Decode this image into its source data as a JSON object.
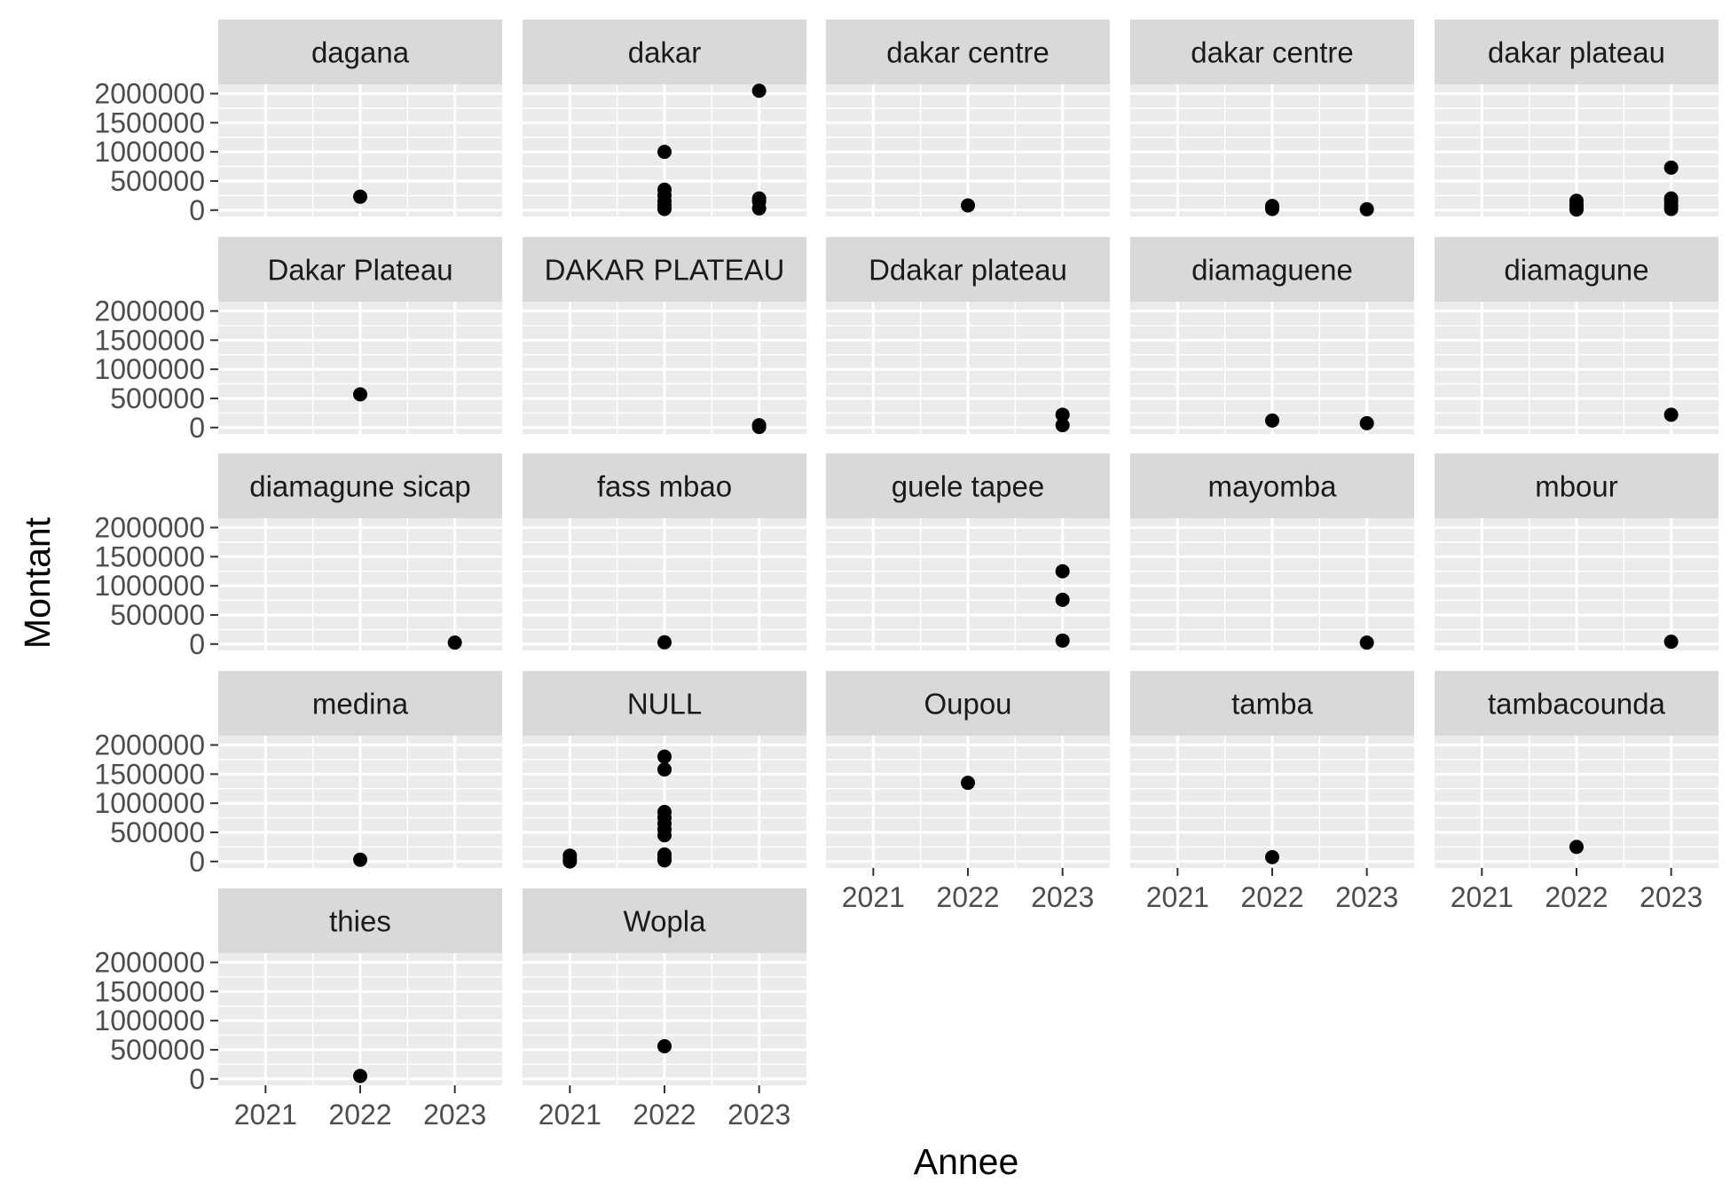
{
  "chart_data": {
    "type": "scatter",
    "xlabel": "Annee",
    "ylabel": "Montant",
    "xlim": [
      2020.5,
      2023.5
    ],
    "ylim": [
      -110000,
      2160000
    ],
    "x_ticks": [
      2021,
      2022,
      2023
    ],
    "y_ticks": [
      0,
      500000,
      1000000,
      1500000,
      2000000
    ],
    "x_minor_ticks": [
      2021.5,
      2022.5
    ],
    "y_minor_ticks": [
      250000,
      750000,
      1250000,
      1750000
    ],
    "layout": {
      "columns": 5,
      "rows": 5
    },
    "colors": {
      "panel_bg": "#ebebeb",
      "strip_bg": "#d9d9d9",
      "grid": "#ffffff",
      "point": "#000000",
      "tick": "#333333"
    },
    "facets": [
      {
        "name": "dagana",
        "points": [
          [
            2022,
            230000
          ]
        ]
      },
      {
        "name": "dakar",
        "points": [
          [
            2022,
            1000000
          ],
          [
            2022,
            350000
          ],
          [
            2022,
            250000
          ],
          [
            2022,
            150000
          ],
          [
            2022,
            80000
          ],
          [
            2022,
            20000
          ],
          [
            2023,
            2050000
          ],
          [
            2023,
            200000
          ],
          [
            2023,
            150000
          ],
          [
            2023,
            30000
          ]
        ]
      },
      {
        "name": "dakar  centre",
        "points": [
          [
            2022,
            80000
          ]
        ]
      },
      {
        "name": "dakar centre",
        "points": [
          [
            2022,
            70000
          ],
          [
            2022,
            20000
          ],
          [
            2023,
            15000
          ]
        ]
      },
      {
        "name": "dakar plateau",
        "points": [
          [
            2022,
            160000
          ],
          [
            2022,
            100000
          ],
          [
            2022,
            50000
          ],
          [
            2022,
            10000
          ],
          [
            2023,
            730000
          ],
          [
            2023,
            200000
          ],
          [
            2023,
            150000
          ],
          [
            2023,
            80000
          ],
          [
            2023,
            20000
          ]
        ]
      },
      {
        "name": "Dakar Plateau",
        "points": [
          [
            2022,
            570000
          ]
        ]
      },
      {
        "name": "DAKAR PLATEAU",
        "points": [
          [
            2023,
            40000
          ],
          [
            2023,
            10000
          ]
        ]
      },
      {
        "name": "Ddakar plateau",
        "points": [
          [
            2023,
            220000
          ],
          [
            2023,
            40000
          ]
        ]
      },
      {
        "name": "diamaguene",
        "points": [
          [
            2022,
            120000
          ],
          [
            2023,
            75000
          ]
        ]
      },
      {
        "name": "diamagune",
        "points": [
          [
            2023,
            220000
          ]
        ]
      },
      {
        "name": "diamagune sicap",
        "points": [
          [
            2023,
            25000
          ]
        ]
      },
      {
        "name": "fass mbao",
        "points": [
          [
            2022,
            30000
          ]
        ]
      },
      {
        "name": "guele tapee",
        "points": [
          [
            2023,
            1250000
          ],
          [
            2023,
            760000
          ],
          [
            2023,
            60000
          ]
        ]
      },
      {
        "name": "mayomba",
        "points": [
          [
            2023,
            25000
          ]
        ]
      },
      {
        "name": "mbour",
        "points": [
          [
            2023,
            40000
          ]
        ]
      },
      {
        "name": "medina",
        "points": [
          [
            2022,
            30000
          ]
        ]
      },
      {
        "name": "NULL",
        "points": [
          [
            2021,
            100000
          ],
          [
            2021,
            30000
          ],
          [
            2021,
            0
          ],
          [
            2022,
            1800000
          ],
          [
            2022,
            1580000
          ],
          [
            2022,
            850000
          ],
          [
            2022,
            750000
          ],
          [
            2022,
            650000
          ],
          [
            2022,
            550000
          ],
          [
            2022,
            450000
          ],
          [
            2022,
            120000
          ],
          [
            2022,
            60000
          ],
          [
            2022,
            20000
          ]
        ]
      },
      {
        "name": "Oupou",
        "points": [
          [
            2022,
            1350000
          ]
        ]
      },
      {
        "name": "tamba",
        "points": [
          [
            2022,
            75000
          ]
        ]
      },
      {
        "name": "tambacounda",
        "points": [
          [
            2022,
            250000
          ]
        ]
      },
      {
        "name": "thies",
        "points": [
          [
            2022,
            50000
          ]
        ]
      },
      {
        "name": "Wopla",
        "points": [
          [
            2022,
            560000
          ]
        ]
      }
    ]
  }
}
